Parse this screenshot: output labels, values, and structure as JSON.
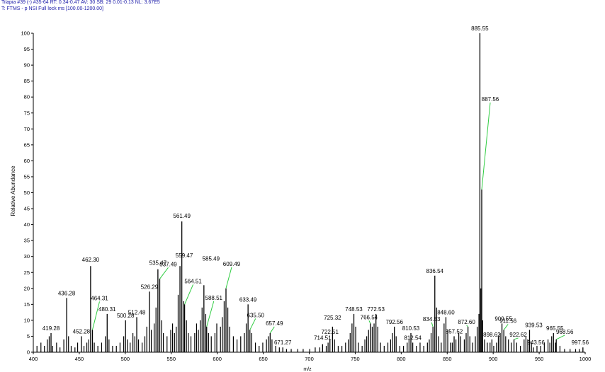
{
  "header": {
    "line1": "Tilapia #39 (-) #35-64  RT: 0.34-0.47  AV: 30  SB: 29 0.01-0.13  NL: 3.67E5",
    "line2": "T: FTMS - p NSI Full lock ms [100.00-1200.00]"
  },
  "chart_data": {
    "type": "bar",
    "title": "",
    "xlabel": "m/z",
    "ylabel": "Relative Abundance",
    "xlim": [
      400,
      1000
    ],
    "ylim": [
      0,
      100
    ],
    "x_ticks": [
      400,
      450,
      500,
      550,
      600,
      650,
      700,
      750,
      800,
      850,
      900,
      950,
      1000
    ],
    "y_ticks": [
      0,
      5,
      10,
      15,
      20,
      25,
      30,
      35,
      40,
      45,
      50,
      55,
      60,
      65,
      70,
      75,
      80,
      85,
      90,
      95,
      100
    ],
    "grid": false,
    "line_color": "#000000",
    "callout_color": "#2ecc40",
    "labeled_peaks": [
      {
        "mz": 419.28,
        "intensity": 6,
        "label": "419.28"
      },
      {
        "mz": 436.28,
        "intensity": 17,
        "label": "436.28"
      },
      {
        "mz": 452.28,
        "intensity": 5,
        "label": "452.28"
      },
      {
        "mz": 462.3,
        "intensity": 27,
        "label": "462.30"
      },
      {
        "mz": 464.31,
        "intensity": 7,
        "label": "464.31"
      },
      {
        "mz": 480.31,
        "intensity": 12,
        "label": "480.31"
      },
      {
        "mz": 500.28,
        "intensity": 10,
        "label": "500.28"
      },
      {
        "mz": 512.48,
        "intensity": 11,
        "label": "512.48"
      },
      {
        "mz": 526.29,
        "intensity": 19,
        "label": "526.29"
      },
      {
        "mz": 535.47,
        "intensity": 26,
        "label": "535.47"
      },
      {
        "mz": 537.49,
        "intensity": 23,
        "label": "537.49"
      },
      {
        "mz": 559.47,
        "intensity": 27,
        "label": "559.47"
      },
      {
        "mz": 561.49,
        "intensity": 41,
        "label": "561.49"
      },
      {
        "mz": 564.51,
        "intensity": 15,
        "label": "564.51"
      },
      {
        "mz": 585.49,
        "intensity": 21,
        "label": "585.49"
      },
      {
        "mz": 588.51,
        "intensity": 8,
        "label": "588.51"
      },
      {
        "mz": 609.49,
        "intensity": 20,
        "label": "609.49"
      },
      {
        "mz": 633.49,
        "intensity": 15,
        "label": "633.49"
      },
      {
        "mz": 635.5,
        "intensity": 7,
        "label": "635.50"
      },
      {
        "mz": 657.49,
        "intensity": 6,
        "label": "657.49"
      },
      {
        "mz": 671.27,
        "intensity": 1.5,
        "label": "671.27"
      },
      {
        "mz": 714.51,
        "intensity": 2.5,
        "label": "714.51"
      },
      {
        "mz": 722.51,
        "intensity": 4,
        "label": "722.51"
      },
      {
        "mz": 725.32,
        "intensity": 8,
        "label": "725.32"
      },
      {
        "mz": 748.53,
        "intensity": 12,
        "label": "748.53"
      },
      {
        "mz": 766.54,
        "intensity": 9,
        "label": "766.54"
      },
      {
        "mz": 772.53,
        "intensity": 12,
        "label": "772.53"
      },
      {
        "mz": 792.56,
        "intensity": 8,
        "label": "792.56"
      },
      {
        "mz": 810.53,
        "intensity": 6,
        "label": "810.53"
      },
      {
        "mz": 812.54,
        "intensity": 3,
        "label": "812.54"
      },
      {
        "mz": 834.53,
        "intensity": 8,
        "label": "834.53"
      },
      {
        "mz": 836.54,
        "intensity": 24,
        "label": "836.54"
      },
      {
        "mz": 848.6,
        "intensity": 11,
        "label": "848.60"
      },
      {
        "mz": 857.52,
        "intensity": 5,
        "label": "857.52"
      },
      {
        "mz": 872.6,
        "intensity": 8,
        "label": "872.60"
      },
      {
        "mz": 885.55,
        "intensity": 100,
        "label": "885.55"
      },
      {
        "mz": 887.56,
        "intensity": 51,
        "label": "887.56"
      },
      {
        "mz": 898.62,
        "intensity": 4,
        "label": "898.62"
      },
      {
        "mz": 909.55,
        "intensity": 9,
        "label": "909.55"
      },
      {
        "mz": 911.56,
        "intensity": 7,
        "label": "911.56"
      },
      {
        "mz": 922.62,
        "intensity": 4,
        "label": "922.62"
      },
      {
        "mz": 939.53,
        "intensity": 7,
        "label": "939.53"
      },
      {
        "mz": 943.56,
        "intensity": 1.5,
        "label": "943.56"
      },
      {
        "mz": 965.55,
        "intensity": 6,
        "label": "965.55"
      },
      {
        "mz": 968.56,
        "intensity": 4,
        "label": "968.56"
      },
      {
        "mz": 997.56,
        "intensity": 1.5,
        "label": "997.56"
      }
    ],
    "minor_peaks": [
      {
        "mz": 404.0,
        "intensity": 2
      },
      {
        "mz": 408.3,
        "intensity": 3
      },
      {
        "mz": 412.1,
        "intensity": 2
      },
      {
        "mz": 415.2,
        "intensity": 4
      },
      {
        "mz": 417.3,
        "intensity": 5
      },
      {
        "mz": 421.0,
        "intensity": 2
      },
      {
        "mz": 425.3,
        "intensity": 3
      },
      {
        "mz": 429.0,
        "intensity": 1.5
      },
      {
        "mz": 433.2,
        "intensity": 4
      },
      {
        "mz": 438.3,
        "intensity": 5
      },
      {
        "mz": 441.2,
        "intensity": 2
      },
      {
        "mz": 445.3,
        "intensity": 1.5
      },
      {
        "mz": 448.2,
        "intensity": 3
      },
      {
        "mz": 455.1,
        "intensity": 2
      },
      {
        "mz": 458.2,
        "intensity": 3
      },
      {
        "mz": 460.3,
        "intensity": 4
      },
      {
        "mz": 466.3,
        "intensity": 3
      },
      {
        "mz": 470.2,
        "intensity": 2
      },
      {
        "mz": 474.3,
        "intensity": 3
      },
      {
        "mz": 478.3,
        "intensity": 5
      },
      {
        "mz": 482.3,
        "intensity": 4
      },
      {
        "mz": 486.2,
        "intensity": 2
      },
      {
        "mz": 490.3,
        "intensity": 2
      },
      {
        "mz": 494.3,
        "intensity": 3
      },
      {
        "mz": 498.3,
        "intensity": 5
      },
      {
        "mz": 502.3,
        "intensity": 4
      },
      {
        "mz": 505.3,
        "intensity": 3
      },
      {
        "mz": 508.3,
        "intensity": 6
      },
      {
        "mz": 510.4,
        "intensity": 5
      },
      {
        "mz": 514.4,
        "intensity": 4
      },
      {
        "mz": 518.3,
        "intensity": 3
      },
      {
        "mz": 521.3,
        "intensity": 5
      },
      {
        "mz": 523.4,
        "intensity": 8
      },
      {
        "mz": 528.3,
        "intensity": 7
      },
      {
        "mz": 531.4,
        "intensity": 9
      },
      {
        "mz": 533.4,
        "intensity": 14
      },
      {
        "mz": 539.5,
        "intensity": 10
      },
      {
        "mz": 541.4,
        "intensity": 6
      },
      {
        "mz": 545.4,
        "intensity": 5
      },
      {
        "mz": 549.4,
        "intensity": 7
      },
      {
        "mz": 551.4,
        "intensity": 9
      },
      {
        "mz": 553.5,
        "intensity": 6
      },
      {
        "mz": 555.4,
        "intensity": 8
      },
      {
        "mz": 557.5,
        "intensity": 18
      },
      {
        "mz": 563.5,
        "intensity": 16
      },
      {
        "mz": 566.5,
        "intensity": 10
      },
      {
        "mz": 568.5,
        "intensity": 6
      },
      {
        "mz": 571.4,
        "intensity": 5
      },
      {
        "mz": 575.5,
        "intensity": 6
      },
      {
        "mz": 577.5,
        "intensity": 9
      },
      {
        "mz": 579.5,
        "intensity": 7
      },
      {
        "mz": 581.5,
        "intensity": 10
      },
      {
        "mz": 583.5,
        "intensity": 14
      },
      {
        "mz": 587.5,
        "intensity": 12
      },
      {
        "mz": 590.5,
        "intensity": 6
      },
      {
        "mz": 593.5,
        "intensity": 5
      },
      {
        "mz": 597.5,
        "intensity": 6
      },
      {
        "mz": 599.5,
        "intensity": 9
      },
      {
        "mz": 603.5,
        "intensity": 8
      },
      {
        "mz": 605.5,
        "intensity": 11
      },
      {
        "mz": 607.5,
        "intensity": 16
      },
      {
        "mz": 611.5,
        "intensity": 14
      },
      {
        "mz": 613.5,
        "intensity": 8
      },
      {
        "mz": 617.5,
        "intensity": 5
      },
      {
        "mz": 621.5,
        "intensity": 4
      },
      {
        "mz": 625.5,
        "intensity": 5
      },
      {
        "mz": 629.5,
        "intensity": 6
      },
      {
        "mz": 631.5,
        "intensity": 9
      },
      {
        "mz": 637.5,
        "intensity": 6
      },
      {
        "mz": 641.5,
        "intensity": 3
      },
      {
        "mz": 645.5,
        "intensity": 2
      },
      {
        "mz": 649.5,
        "intensity": 3
      },
      {
        "mz": 653.5,
        "intensity": 4
      },
      {
        "mz": 655.5,
        "intensity": 5
      },
      {
        "mz": 659.5,
        "intensity": 4
      },
      {
        "mz": 663.5,
        "intensity": 2
      },
      {
        "mz": 667.5,
        "intensity": 1.5
      },
      {
        "mz": 675.3,
        "intensity": 1
      },
      {
        "mz": 680.4,
        "intensity": 1
      },
      {
        "mz": 687.5,
        "intensity": 1
      },
      {
        "mz": 693.4,
        "intensity": 1
      },
      {
        "mz": 700.5,
        "intensity": 1
      },
      {
        "mz": 706.5,
        "intensity": 1.5
      },
      {
        "mz": 711.5,
        "intensity": 1.5
      },
      {
        "mz": 718.5,
        "intensity": 2
      },
      {
        "mz": 720.5,
        "intensity": 3
      },
      {
        "mz": 727.5,
        "intensity": 4
      },
      {
        "mz": 731.5,
        "intensity": 2
      },
      {
        "mz": 735.5,
        "intensity": 2
      },
      {
        "mz": 739.5,
        "intensity": 3
      },
      {
        "mz": 742.5,
        "intensity": 4
      },
      {
        "mz": 744.5,
        "intensity": 6
      },
      {
        "mz": 746.5,
        "intensity": 9
      },
      {
        "mz": 750.5,
        "intensity": 8
      },
      {
        "mz": 753.5,
        "intensity": 3
      },
      {
        "mz": 757.5,
        "intensity": 2
      },
      {
        "mz": 760.5,
        "intensity": 4
      },
      {
        "mz": 762.5,
        "intensity": 5
      },
      {
        "mz": 764.5,
        "intensity": 7
      },
      {
        "mz": 768.5,
        "intensity": 8
      },
      {
        "mz": 770.5,
        "intensity": 9
      },
      {
        "mz": 774.5,
        "intensity": 8
      },
      {
        "mz": 777.5,
        "intensity": 3
      },
      {
        "mz": 781.5,
        "intensity": 2
      },
      {
        "mz": 785.5,
        "intensity": 3
      },
      {
        "mz": 788.5,
        "intensity": 4
      },
      {
        "mz": 790.5,
        "intensity": 6
      },
      {
        "mz": 794.5,
        "intensity": 5
      },
      {
        "mz": 798.5,
        "intensity": 2
      },
      {
        "mz": 802.5,
        "intensity": 2
      },
      {
        "mz": 806.5,
        "intensity": 3
      },
      {
        "mz": 808.5,
        "intensity": 4
      },
      {
        "mz": 816.5,
        "intensity": 2
      },
      {
        "mz": 820.5,
        "intensity": 3
      },
      {
        "mz": 824.5,
        "intensity": 2
      },
      {
        "mz": 828.5,
        "intensity": 3
      },
      {
        "mz": 830.5,
        "intensity": 4
      },
      {
        "mz": 832.5,
        "intensity": 6
      },
      {
        "mz": 838.5,
        "intensity": 14
      },
      {
        "mz": 840.5,
        "intensity": 5
      },
      {
        "mz": 843.5,
        "intensity": 3
      },
      {
        "mz": 846.6,
        "intensity": 9
      },
      {
        "mz": 850.6,
        "intensity": 7
      },
      {
        "mz": 853.5,
        "intensity": 3
      },
      {
        "mz": 855.5,
        "intensity": 3
      },
      {
        "mz": 859.5,
        "intensity": 4
      },
      {
        "mz": 862.6,
        "intensity": 6
      },
      {
        "mz": 864.6,
        "intensity": 5
      },
      {
        "mz": 868.6,
        "intensity": 4
      },
      {
        "mz": 870.6,
        "intensity": 6
      },
      {
        "mz": 874.6,
        "intensity": 5
      },
      {
        "mz": 877.6,
        "intensity": 3
      },
      {
        "mz": 880.6,
        "intensity": 5
      },
      {
        "mz": 882.6,
        "intensity": 8
      },
      {
        "mz": 884.5,
        "intensity": 12
      },
      {
        "mz": 886.6,
        "intensity": 20
      },
      {
        "mz": 888.6,
        "intensity": 10
      },
      {
        "mz": 890.6,
        "intensity": 4
      },
      {
        "mz": 893.6,
        "intensity": 3
      },
      {
        "mz": 896.6,
        "intensity": 3
      },
      {
        "mz": 900.6,
        "intensity": 2
      },
      {
        "mz": 903.6,
        "intensity": 3
      },
      {
        "mz": 905.6,
        "intensity": 5
      },
      {
        "mz": 907.6,
        "intensity": 6
      },
      {
        "mz": 913.6,
        "intensity": 5
      },
      {
        "mz": 916.6,
        "intensity": 4
      },
      {
        "mz": 919.6,
        "intensity": 3
      },
      {
        "mz": 925.6,
        "intensity": 3
      },
      {
        "mz": 929.6,
        "intensity": 2
      },
      {
        "mz": 933.6,
        "intensity": 4
      },
      {
        "mz": 935.6,
        "intensity": 5
      },
      {
        "mz": 937.6,
        "intensity": 4
      },
      {
        "mz": 941.6,
        "intensity": 3
      },
      {
        "mz": 947.6,
        "intensity": 2
      },
      {
        "mz": 951.6,
        "intensity": 2
      },
      {
        "mz": 955.6,
        "intensity": 3
      },
      {
        "mz": 959.6,
        "intensity": 4
      },
      {
        "mz": 961.6,
        "intensity": 3
      },
      {
        "mz": 963.6,
        "intensity": 5
      },
      {
        "mz": 967.6,
        "intensity": 3
      },
      {
        "mz": 972.6,
        "intensity": 2
      },
      {
        "mz": 977.6,
        "intensity": 1
      },
      {
        "mz": 983.6,
        "intensity": 1
      },
      {
        "mz": 989.6,
        "intensity": 1
      },
      {
        "mz": 993.6,
        "intensity": 1
      }
    ]
  }
}
